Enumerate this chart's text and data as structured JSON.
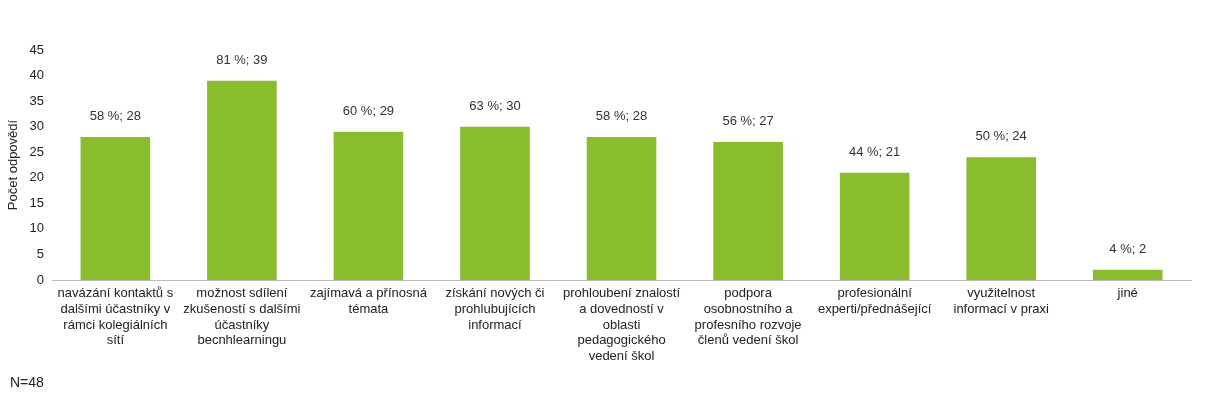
{
  "chart_data": {
    "type": "bar",
    "categories": [
      "navázání kontaktů s dalšími účastníky v rámci kolegiálních sítí",
      "možnost sdílení zkušeností s dalšími účastníky becnhlearningu",
      "zajímavá a přínosná témata",
      "získání nových či prohlubujících informací",
      "prohloubení znalostí a dovedností v oblasti pedagogického vedení škol",
      "podpora osobnostního a profesního rozvoje členů vedení škol",
      "profesionální experti/přednášející",
      "využitelnost informací v praxi",
      "jiné"
    ],
    "series": [
      {
        "color": "#8abd2e",
        "values": [
          28,
          39,
          29,
          30,
          28,
          27,
          21,
          24,
          2
        ],
        "value_labels": [
          "58 %; 28",
          "81 %; 39",
          "60 %; 29",
          "63 %; 30",
          "58 %; 28",
          "56 %; 27",
          "44 %; 21",
          "50 %; 24",
          "4 %; 2"
        ]
      }
    ],
    "ylabel": "Počet odpovědí",
    "ylim": [
      0,
      45
    ],
    "yticks": [
      0,
      5,
      10,
      15,
      20,
      25,
      30,
      35,
      40,
      45
    ],
    "grid": false,
    "legend": false,
    "annotations": [
      "N=48"
    ]
  }
}
